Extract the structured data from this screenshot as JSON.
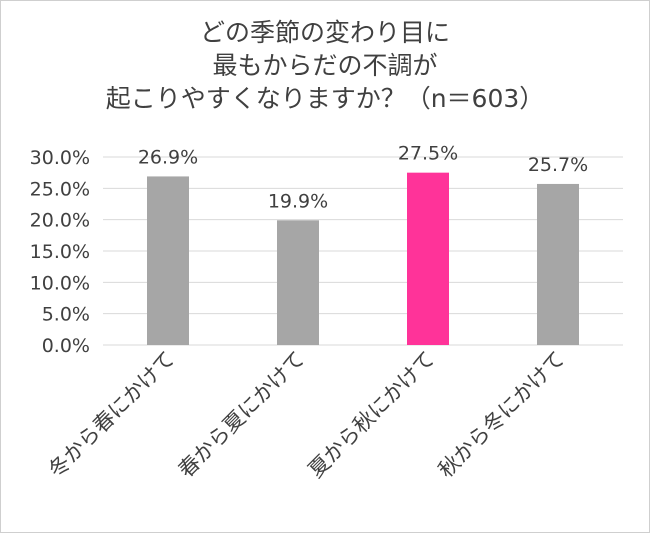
{
  "chart_data": {
    "type": "bar",
    "title_lines": [
      "どの季節の変わり目に",
      "最もからだの不調が",
      "起こりやすくなりますか？（n＝603）"
    ],
    "categories": [
      "冬から春にかけて",
      "春から夏にかけて",
      "夏から秋にかけて",
      "秋から冬にかけて"
    ],
    "values": [
      26.9,
      19.9,
      27.5,
      25.7
    ],
    "data_labels": [
      "26.9%",
      "19.9%",
      "27.5%",
      "25.7%"
    ],
    "bar_colors": [
      "#a6a6a6",
      "#a6a6a6",
      "#ff3399",
      "#a6a6a6"
    ],
    "ylim": [
      0,
      30
    ],
    "y_ticks": [
      0,
      5,
      10,
      15,
      20,
      25,
      30
    ],
    "y_tick_labels": [
      "0.0%",
      "5.0%",
      "10.0%",
      "15.0%",
      "20.0%",
      "25.0%",
      "30.0%"
    ],
    "grid": true,
    "legend": "none",
    "colors": {
      "default_bar": "#a6a6a6",
      "highlight_bar": "#ff3399",
      "gridline": "#d9d9d9",
      "text": "#404040"
    }
  }
}
